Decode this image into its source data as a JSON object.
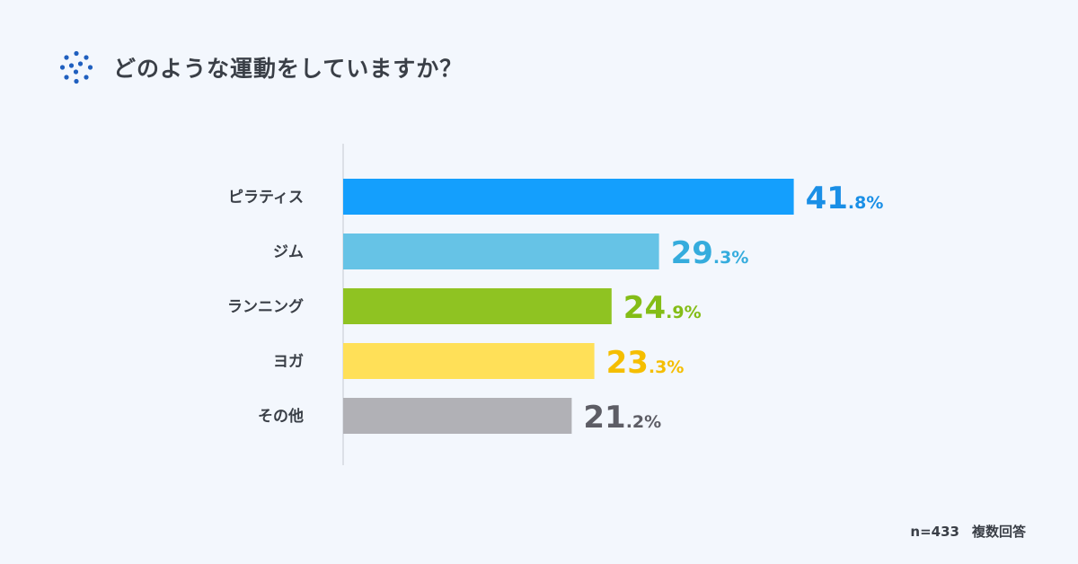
{
  "title": "どのような運動をしていますか？",
  "footnote": {
    "n": "n=433",
    "note": "複数回答"
  },
  "logo_icon": "dotted-circle-icon",
  "chart_data": {
    "type": "bar",
    "orientation": "horizontal",
    "categories": [
      "ピラティス",
      "ジム",
      "ランニング",
      "ヨガ",
      "その他"
    ],
    "values": [
      41.8,
      29.3,
      24.9,
      23.3,
      21.2
    ],
    "value_labels": [
      {
        "int": "41",
        "dec": ".8%"
      },
      {
        "int": "29",
        "dec": ".3%"
      },
      {
        "int": "24",
        "dec": ".9%"
      },
      {
        "int": "23",
        "dec": ".3%"
      },
      {
        "int": "21",
        "dec": ".2%"
      }
    ],
    "colors": [
      "#149ffd",
      "#66c3e6",
      "#8fc322",
      "#ffe058",
      "#b1b1b6"
    ],
    "label_colors": [
      "#1a8fe6",
      "#35acdd",
      "#84bd17",
      "#f5be00",
      "#5d5d65"
    ],
    "xlim": [
      0,
      43
    ],
    "grid": false
  }
}
